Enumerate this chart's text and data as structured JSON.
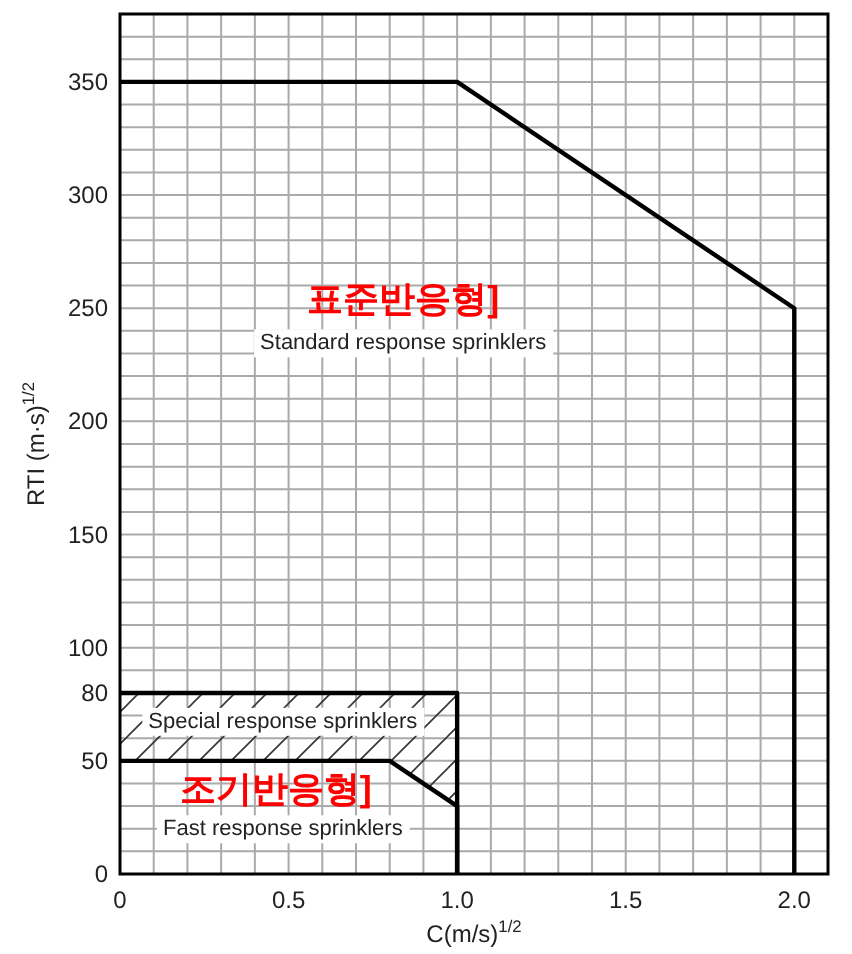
{
  "chart_data": {
    "type": "line",
    "xlabel": "C(m/s)$^{1/2}$",
    "ylabel": "RTI (m·s)$^{1/2}$",
    "xlim": [
      0,
      2.1
    ],
    "ylim": [
      0,
      380
    ],
    "xticks": [
      0,
      {
        "value": 0.1,
        "label": null
      },
      {
        "value": 0.2,
        "label": null
      },
      {
        "value": 0.3,
        "label": null
      },
      {
        "value": 0.4,
        "label": null
      },
      0.5,
      {
        "value": 0.6,
        "label": null
      },
      {
        "value": 0.7,
        "label": null
      },
      {
        "value": 0.8,
        "label": null
      },
      {
        "value": 0.9,
        "label": null
      },
      {
        "value": 1,
        "label": "1.0"
      },
      {
        "value": 1.1,
        "label": null
      },
      {
        "value": 1.2,
        "label": null
      },
      {
        "value": 1.3,
        "label": null
      },
      {
        "value": 1.4,
        "label": null
      },
      1.5,
      {
        "value": 1.6,
        "label": null
      },
      {
        "value": 1.7,
        "label": null
      },
      {
        "value": 1.8,
        "label": null
      },
      {
        "value": 1.9,
        "label": null
      },
      {
        "value": 2,
        "label": "2.0"
      },
      {
        "value": 2.1,
        "label": null
      }
    ],
    "yticks": [
      0,
      {
        "value": 10,
        "label": null
      },
      {
        "value": 20,
        "label": null
      },
      {
        "value": 30,
        "label": null
      },
      {
        "value": 40,
        "label": null
      },
      50,
      {
        "value": 60,
        "label": null
      },
      {
        "value": 70,
        "label": null
      },
      80,
      {
        "value": 90,
        "label": null
      },
      100,
      {
        "value": 110,
        "label": null
      },
      {
        "value": 120,
        "label": null
      },
      {
        "value": 130,
        "label": null
      },
      {
        "value": 140,
        "label": null
      },
      150,
      {
        "value": 160,
        "label": null
      },
      {
        "value": 170,
        "label": null
      },
      {
        "value": 180,
        "label": null
      },
      {
        "value": 190,
        "label": null
      },
      200,
      {
        "value": 210,
        "label": null
      },
      {
        "value": 220,
        "label": null
      },
      {
        "value": 230,
        "label": null
      },
      {
        "value": 240,
        "label": null
      },
      250,
      {
        "value": 260,
        "label": null
      },
      {
        "value": 270,
        "label": null
      },
      {
        "value": 280,
        "label": null
      },
      {
        "value": 290,
        "label": null
      },
      300,
      {
        "value": 310,
        "label": null
      },
      {
        "value": 320,
        "label": null
      },
      {
        "value": 330,
        "label": null
      },
      {
        "value": 340,
        "label": null
      },
      350,
      {
        "value": 360,
        "label": null
      },
      {
        "value": 370,
        "label": null
      },
      {
        "value": 380,
        "label": null
      }
    ],
    "grid": true,
    "series": [
      {
        "color": "#000000",
        "x": [
          0,
          1,
          2,
          2
        ],
        "values": [
          350,
          350,
          250,
          0
        ]
      },
      {
        "color": "#000000",
        "x": [
          0,
          0.8,
          1,
          1
        ],
        "values": [
          80,
          80,
          80,
          0
        ],
        "upper": [
          80,
          80,
          80,
          0
        ],
        "lower": [
          50,
          50,
          30,
          0
        ]
      },
      {
        "color": "#000000",
        "x": [
          0,
          0.8,
          1,
          1
        ],
        "values": [
          50,
          50,
          30,
          0
        ]
      }
    ],
    "annotations": [
      "표준반응형]",
      "Standard response sprinklers",
      "Special response sprinklers",
      "조기반응형]",
      "Fast response sprinklers"
    ]
  }
}
